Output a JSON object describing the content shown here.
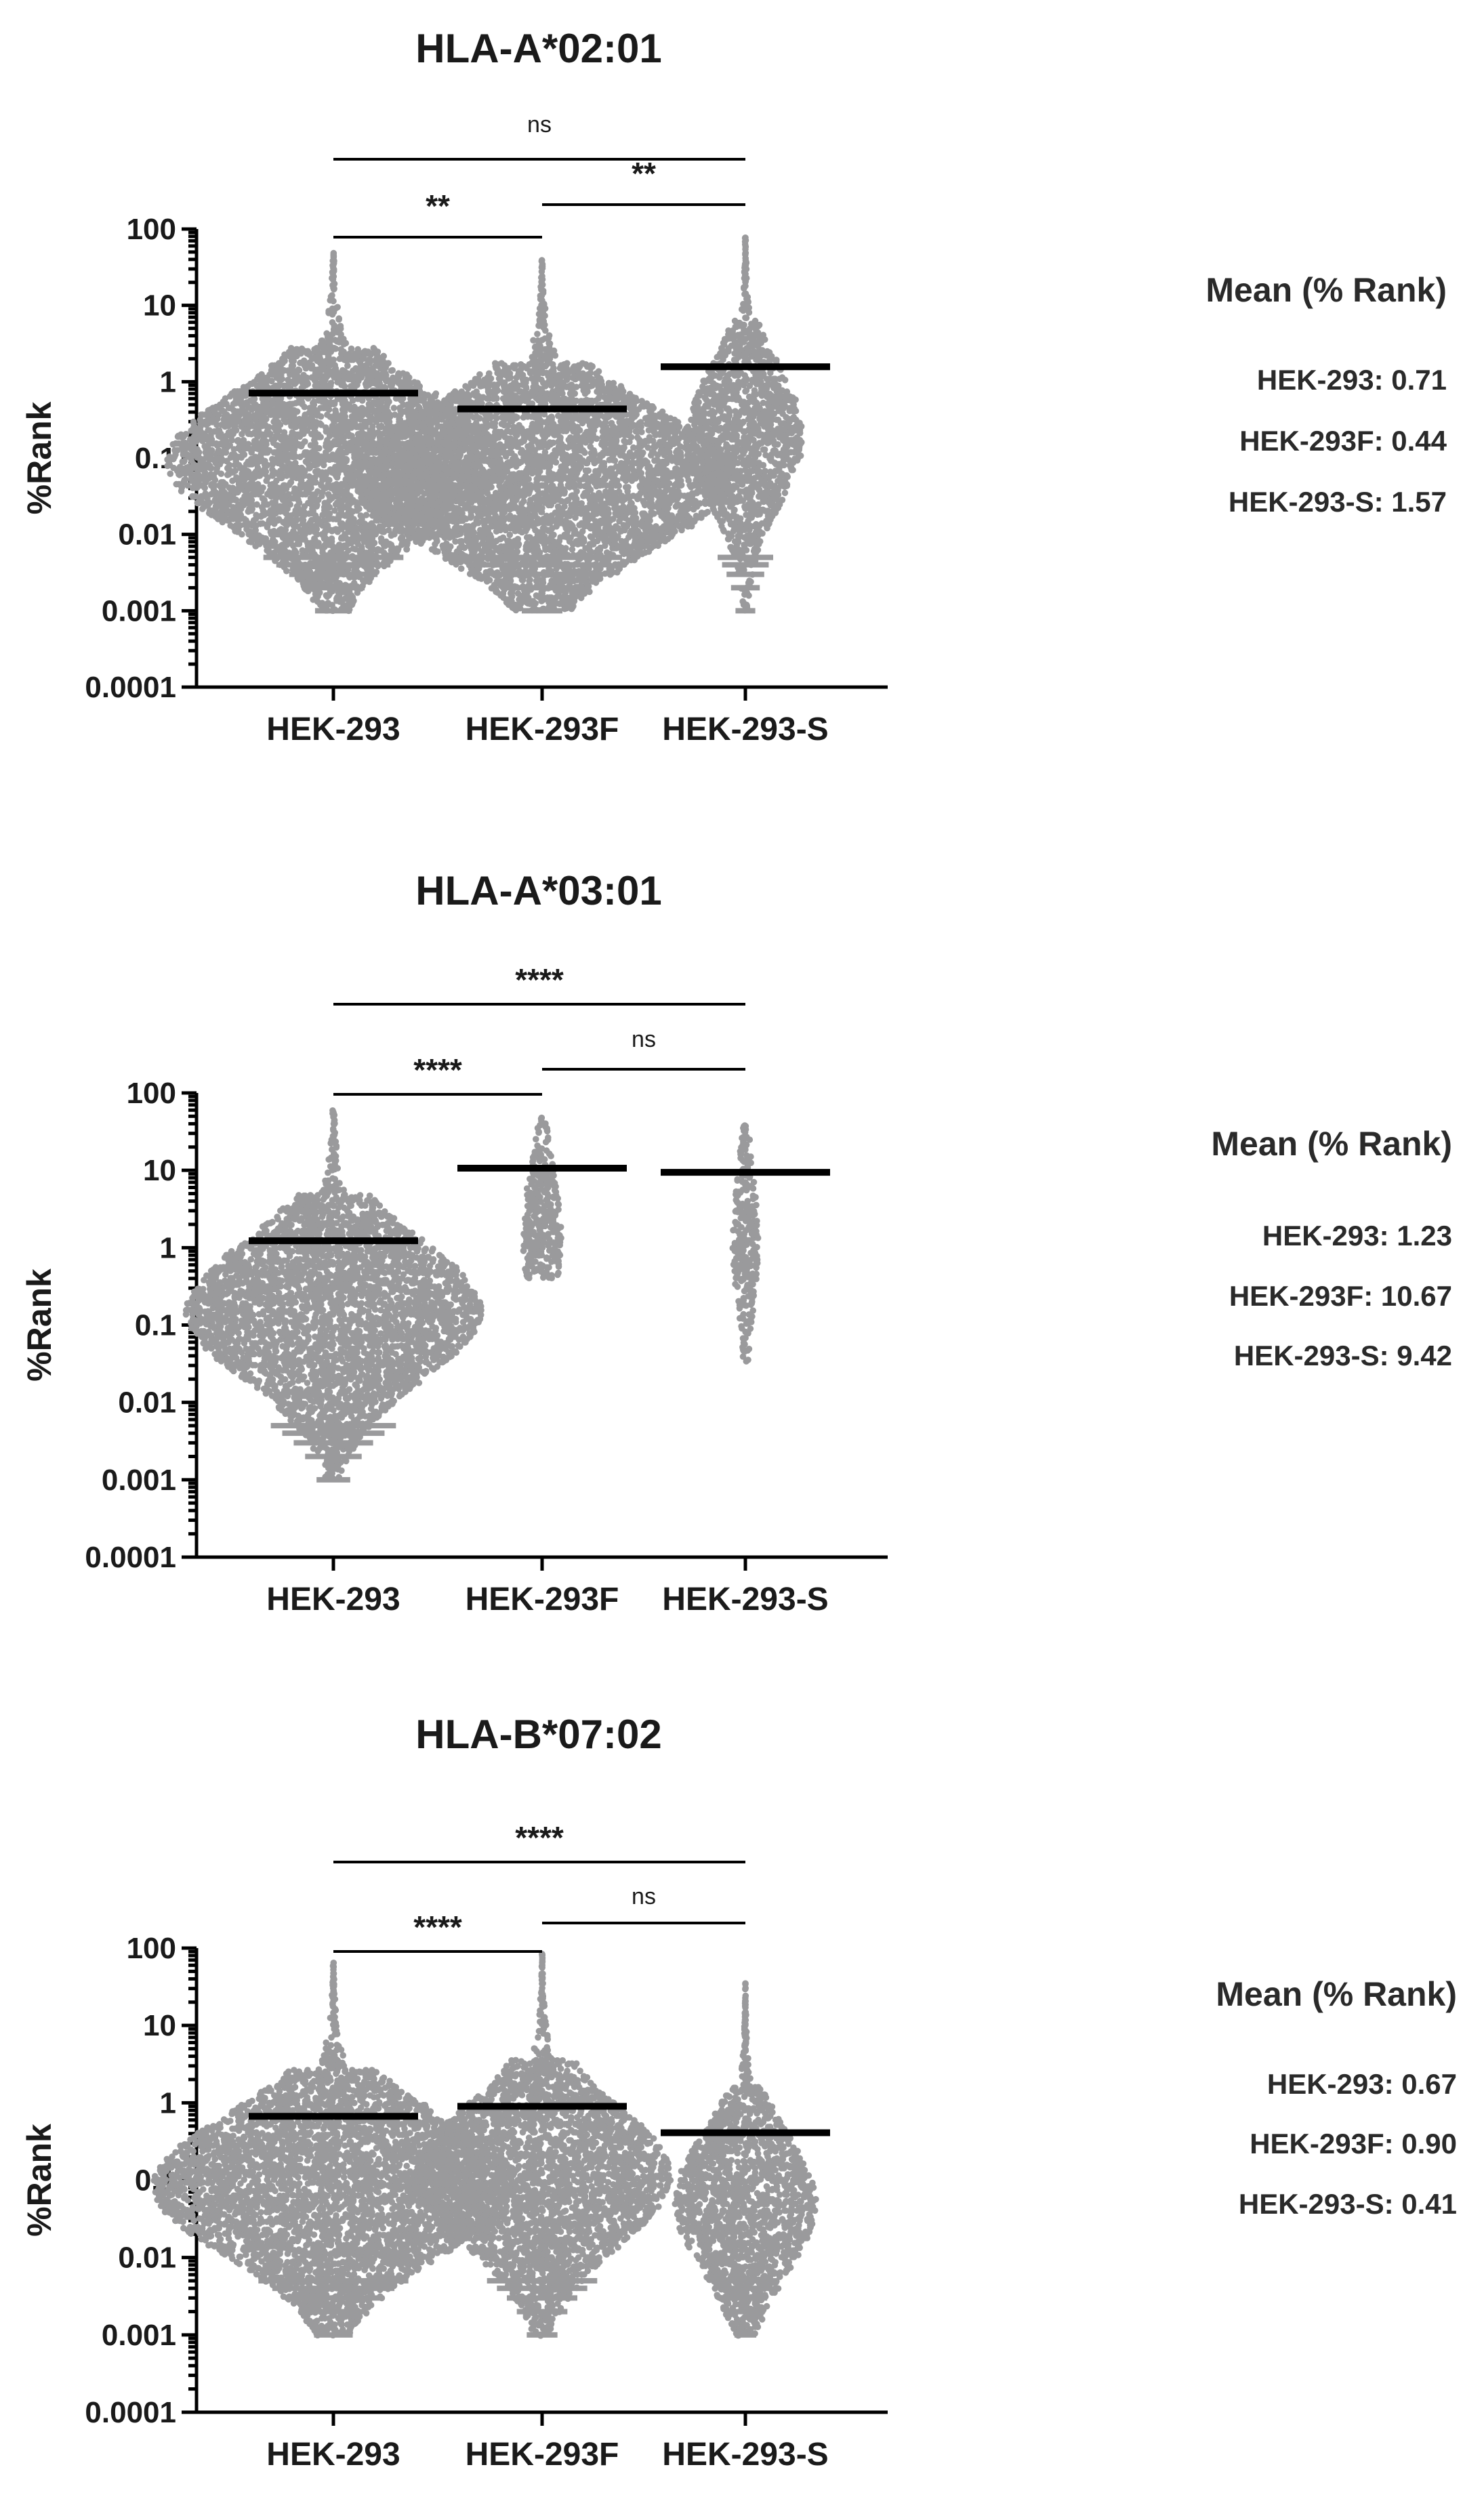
{
  "chart_data": [
    {
      "type": "scatter",
      "title": "HLA-A*02:01",
      "ylabel": "%Rank",
      "yscale": "log",
      "ylim": [
        0.0001,
        100
      ],
      "yticks": [
        "100",
        "10",
        "1",
        "0.1",
        "0.01",
        "0.001",
        "0.0001"
      ],
      "categories": [
        "HEK-293",
        "HEK-293F",
        "HEK-293-S"
      ],
      "means": [
        0.71,
        0.44,
        1.57
      ],
      "ranges": [
        [
          0.001,
          50
        ],
        [
          0.001,
          40
        ],
        [
          0.001,
          80
        ]
      ],
      "densities": [
        2.6,
        3.0,
        0.9
      ],
      "comparisons": [
        {
          "from": 0,
          "to": 1,
          "label": "**"
        },
        {
          "from": 1,
          "to": 2,
          "label": "**"
        },
        {
          "from": 0,
          "to": 2,
          "label": "ns"
        }
      ],
      "mean_panel": {
        "header": "Mean (% Rank)",
        "rows": [
          "HEK-293: 0.71",
          "HEK-293F: 0.44",
          "HEK-293-S: 1.57"
        ]
      }
    },
    {
      "type": "scatter",
      "title": "HLA-A*03:01",
      "ylabel": "%Rank",
      "yscale": "log",
      "ylim": [
        0.0001,
        100
      ],
      "yticks": [
        "100",
        "10",
        "1",
        "0.1",
        "0.01",
        "0.001",
        "0.0001"
      ],
      "categories": [
        "HEK-293",
        "HEK-293F",
        "HEK-293-S"
      ],
      "means": [
        1.23,
        10.67,
        9.42
      ],
      "ranges": [
        [
          0.001,
          60
        ],
        [
          0.4,
          50
        ],
        [
          0.035,
          40
        ]
      ],
      "densities": [
        2.3,
        0.3,
        0.2
      ],
      "comparisons": [
        {
          "from": 0,
          "to": 1,
          "label": "****"
        },
        {
          "from": 1,
          "to": 2,
          "label": "ns"
        },
        {
          "from": 0,
          "to": 2,
          "label": "****"
        }
      ],
      "mean_panel": {
        "header": "Mean (% Rank)",
        "rows": [
          "HEK-293: 1.23",
          "HEK-293F: 10.67",
          "HEK-293-S: 9.42"
        ]
      }
    },
    {
      "type": "scatter",
      "title": "HLA-B*07:02",
      "ylabel": "%Rank",
      "yscale": "log",
      "ylim": [
        0.0001,
        100
      ],
      "yticks": [
        "100",
        "10",
        "1",
        "0.1",
        "0.01",
        "0.001",
        "0.0001"
      ],
      "categories": [
        "HEK-293",
        "HEK-293F",
        "HEK-293-S"
      ],
      "means": [
        0.67,
        0.9,
        0.41
      ],
      "ranges": [
        [
          0.001,
          65
        ],
        [
          0.001,
          90
        ],
        [
          0.001,
          35
        ]
      ],
      "densities": [
        2.8,
        2.0,
        1.1
      ],
      "comparisons": [
        {
          "from": 0,
          "to": 1,
          "label": "****"
        },
        {
          "from": 1,
          "to": 2,
          "label": "ns"
        },
        {
          "from": 0,
          "to": 2,
          "label": "****"
        }
      ],
      "mean_panel": {
        "header": "Mean (% Rank)",
        "rows": [
          "HEK-293: 0.67",
          "HEK-293F: 0.90",
          "HEK-293-S: 0.41"
        ]
      }
    }
  ]
}
